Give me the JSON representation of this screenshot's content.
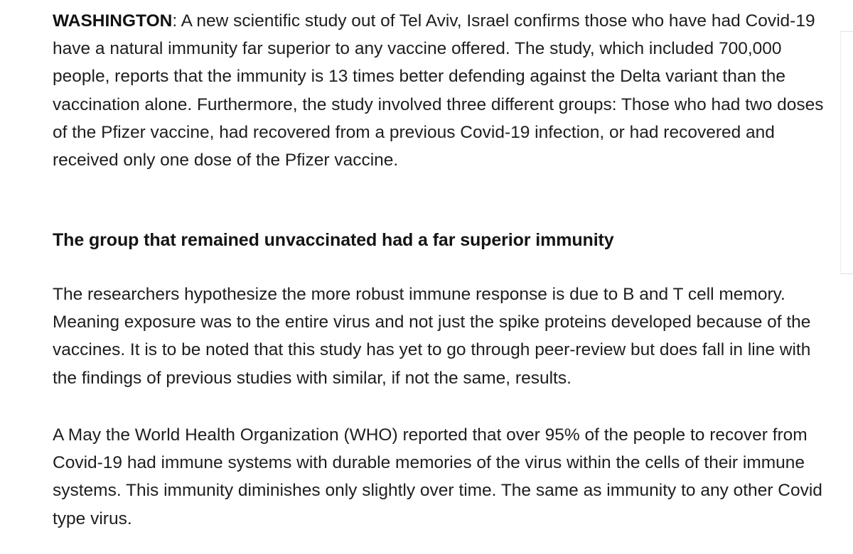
{
  "article": {
    "dateline": "WASHINGTON",
    "intro": ": A new scientific study out of Tel Aviv, Israel confirms those who have had Covid-19 have a natural immunity far superior to any vaccine offered. The study, which included 700,000 people, reports that the immunity is 13 times better defending against the Delta variant than the vaccination alone. Furthermore, the study involved three different groups:  Those who had two doses of the Pfizer vaccine, had recovered from a previous Covid-19 infection, or had recovered and received only one dose of the Pfizer vaccine.",
    "subheading": "The group that remained unvaccinated had a far superior immunity",
    "paragraph_2": "The researchers hypothesize the more robust immune response is due to B and T cell memory. Meaning exposure was to the entire virus and not just the spike proteins developed because of the vaccines. It is to be noted that this study has yet to go through peer-review but does fall in line with the findings of previous studies with similar, if not the same, results.",
    "paragraph_3": "A May the World Health Organization (WHO) reported that over 95% of the people to recover from Covid-19 had immune systems with durable memories of the virus within the cells of their immune systems. This immunity diminishes only slightly over time. The same as immunity to any other Covid type virus."
  }
}
